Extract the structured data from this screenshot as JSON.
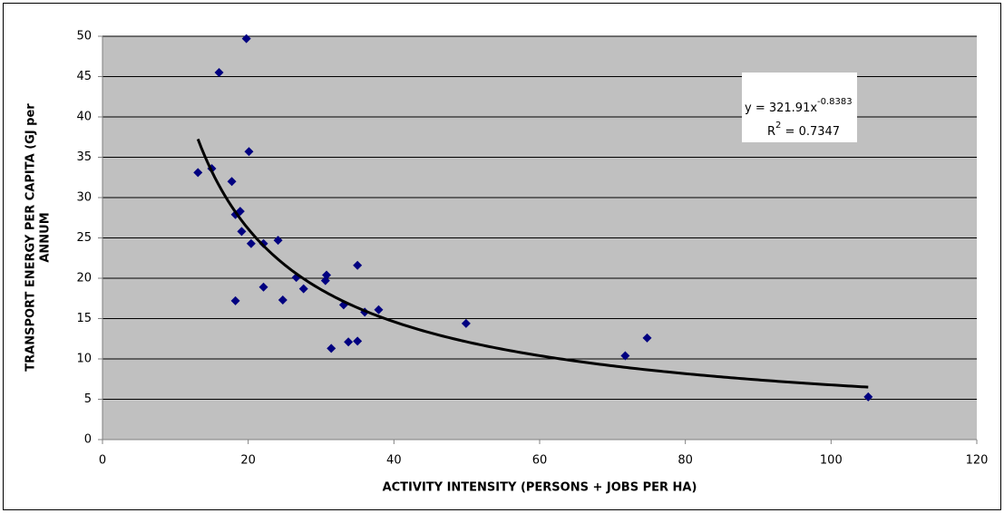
{
  "chart_data": {
    "type": "scatter",
    "x_label": "ACTIVITY INTENSITY (PERSONS + JOBS PER HA)",
    "y_label": [
      "TRANSPORT ENERGY PER CAPITA (GJ per",
      "ANNUM"
    ],
    "x": [
      13.1,
      15.0,
      16.0,
      19.75,
      17.75,
      18.25,
      18.9,
      19.1,
      20.1,
      20.4,
      22.1,
      24.1,
      18.25,
      22.1,
      24.75,
      26.6,
      27.6,
      30.6,
      30.75,
      31.4,
      33.1,
      33.75,
      35.0,
      35.0,
      36.0,
      37.9,
      49.9,
      71.75,
      74.75,
      105.1
    ],
    "values": [
      33.1,
      33.6,
      45.5,
      49.7,
      32.0,
      27.9,
      28.3,
      25.8,
      35.7,
      24.3,
      24.3,
      24.7,
      17.2,
      18.9,
      17.3,
      20.1,
      18.7,
      19.7,
      20.4,
      11.3,
      16.7,
      12.1,
      12.2,
      21.6,
      15.8,
      16.1,
      14.4,
      10.4,
      12.6,
      5.3
    ],
    "color": "#000080",
    "xlim": [
      0,
      120
    ],
    "xticks": [
      0,
      20,
      40,
      60,
      80,
      100,
      120
    ],
    "ylim": [
      0,
      50
    ],
    "yticks": [
      0,
      5,
      10,
      15,
      20,
      25,
      30,
      35,
      40,
      45,
      50
    ],
    "grid": true,
    "trendline": {
      "a": 321.91,
      "b": -0.8383,
      "color": "#000000",
      "equation": [
        "y = 321.91x",
        "-0.8383"
      ],
      "r_squared": [
        "R",
        "2",
        " = 0.7347"
      ]
    }
  }
}
